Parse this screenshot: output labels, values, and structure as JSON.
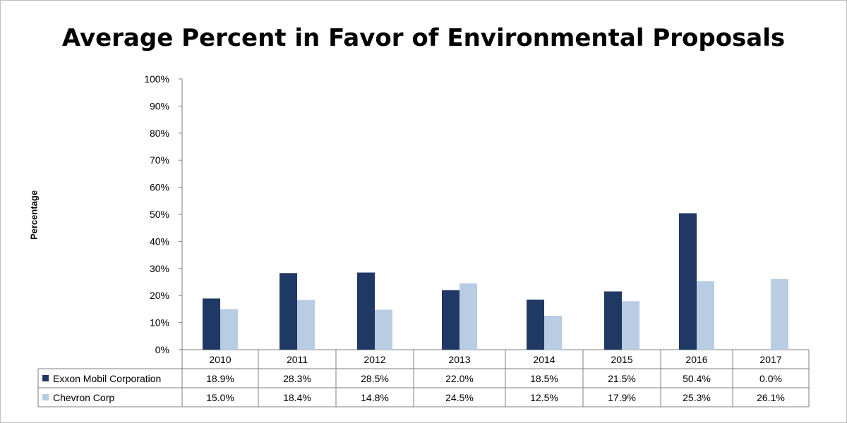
{
  "chart_data": {
    "type": "bar",
    "title": "Average Percent in Favor of Environmental Proposals",
    "ylabel": "Percentage",
    "xlabel": "",
    "ylim": [
      0,
      100
    ],
    "y_ticks": [
      "0%",
      "10%",
      "20%",
      "30%",
      "40%",
      "50%",
      "60%",
      "70%",
      "80%",
      "90%",
      "100%"
    ],
    "categories": [
      "2010",
      "2011",
      "2012",
      "2013",
      "2014",
      "2015",
      "2016",
      "2017"
    ],
    "series": [
      {
        "name": "Exxon Mobil Corporation",
        "color": "#1f3864",
        "values": [
          18.9,
          28.3,
          28.5,
          22.0,
          18.5,
          21.5,
          50.4,
          0.0
        ],
        "labels": [
          "18.9%",
          "28.3%",
          "28.5%",
          "22.0%",
          "18.5%",
          "21.5%",
          "50.4%",
          "0.0%"
        ]
      },
      {
        "name": "Chevron Corp",
        "color": "#b8cce4",
        "values": [
          15.0,
          18.4,
          14.8,
          24.5,
          12.5,
          17.9,
          25.3,
          26.1
        ],
        "labels": [
          "15.0%",
          "18.4%",
          "14.8%",
          "24.5%",
          "12.5%",
          "17.9%",
          "25.3%",
          "26.1%"
        ]
      }
    ],
    "legend": "data-table",
    "grid": false
  }
}
